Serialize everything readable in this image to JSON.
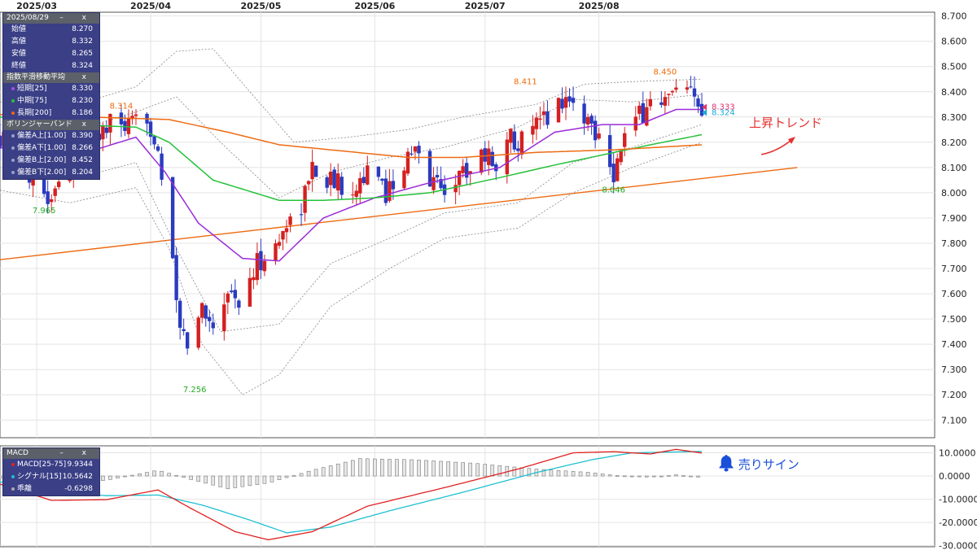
{
  "chart_data": [
    {
      "type": "candlestick",
      "x_ticks": [
        "2025/03",
        "2025/04",
        "2025/05",
        "2025/06",
        "2025/07",
        "2025/08"
      ],
      "y_ticks": [
        "8.700",
        "8.600",
        "8.500",
        "8.400",
        "8.300",
        "8.200",
        "8.100",
        "8.000",
        "7.900",
        "7.800",
        "7.700",
        "7.600",
        "7.500",
        "7.400",
        "7.300",
        "7.200",
        "7.100"
      ],
      "ylim": [
        7.03,
        8.715
      ],
      "date_range": [
        "2025-02-19",
        "2025-08-29"
      ],
      "ohlc_anchors": [
        [
          "2025-02-19",
          8.22
        ],
        [
          "2025-02-25",
          8.12
        ],
        [
          "2025-03-01",
          8.05
        ],
        [
          "2025-03-04",
          7.98
        ],
        [
          "2025-03-08",
          8.06
        ],
        [
          "2025-03-12",
          8.12
        ],
        [
          "2025-03-17",
          8.22
        ],
        [
          "2025-03-22",
          8.28
        ],
        [
          "2025-03-26",
          8.25
        ],
        [
          "2025-03-31",
          8.3
        ],
        [
          "2025-04-03",
          8.18
        ],
        [
          "2025-04-05",
          7.95
        ],
        [
          "2025-04-07",
          7.7
        ],
        [
          "2025-04-09",
          7.45
        ],
        [
          "2025-04-12",
          7.38
        ],
        [
          "2025-04-15",
          7.55
        ],
        [
          "2025-04-18",
          7.48
        ],
        [
          "2025-04-22",
          7.62
        ],
        [
          "2025-04-26",
          7.55
        ],
        [
          "2025-04-30",
          7.72
        ],
        [
          "2025-05-05",
          7.78
        ],
        [
          "2025-05-08",
          7.88
        ],
        [
          "2025-05-12",
          7.95
        ],
        [
          "2025-05-15",
          8.1
        ],
        [
          "2025-05-20",
          8.05
        ],
        [
          "2025-05-25",
          8.02
        ],
        [
          "2025-05-30",
          8.08
        ],
        [
          "2025-06-04",
          8.0
        ],
        [
          "2025-06-08",
          8.1
        ],
        [
          "2025-06-12",
          8.16
        ],
        [
          "2025-06-16",
          8.06
        ],
        [
          "2025-06-20",
          8.02
        ],
        [
          "2025-06-25",
          8.08
        ],
        [
          "2025-06-30",
          8.16
        ],
        [
          "2025-07-04",
          8.12
        ],
        [
          "2025-07-08",
          8.22
        ],
        [
          "2025-07-12",
          8.2
        ],
        [
          "2025-07-16",
          8.28
        ],
        [
          "2025-07-20",
          8.34
        ],
        [
          "2025-07-23",
          8.38
        ],
        [
          "2025-07-27",
          8.32
        ],
        [
          "2025-07-31",
          8.25
        ],
        [
          "2025-08-03",
          8.2
        ],
        [
          "2025-08-05",
          8.08
        ],
        [
          "2025-08-08",
          8.22
        ],
        [
          "2025-08-12",
          8.3
        ],
        [
          "2025-08-16",
          8.38
        ],
        [
          "2025-08-19",
          8.36
        ],
        [
          "2025-08-23",
          8.4
        ],
        [
          "2025-08-26",
          8.38
        ],
        [
          "2025-08-29",
          8.32
        ]
      ],
      "last_candle": {
        "date": "2025/08/29",
        "open": "8.270",
        "high": "8.332",
        "low": "8.265",
        "close": "8.324"
      },
      "price_labels": [
        {
          "text": "8.314",
          "date": "2025-03-24",
          "value": 8.314,
          "color": "#ee6a0a"
        },
        {
          "text": "7.965",
          "date": "2025-03-03",
          "value": 7.965,
          "color": "#22aa22"
        },
        {
          "text": "7.256",
          "date": "2025-04-13",
          "value": 7.256,
          "color": "#22aa22"
        },
        {
          "text": "8.411",
          "date": "2025-07-12",
          "value": 8.411,
          "color": "#ee6a0a"
        },
        {
          "text": "8.450",
          "date": "2025-08-19",
          "value": 8.45,
          "color": "#ee6a0a"
        },
        {
          "text": "8.046",
          "date": "2025-08-05",
          "value": 8.046,
          "color": "#22aa22"
        }
      ],
      "last_price_marks": [
        {
          "text": "8.333",
          "value": 8.333,
          "color": "#e8336e"
        },
        {
          "text": "8.324",
          "value": 8.324,
          "color": "#18a9d6"
        }
      ],
      "ema": [
        {
          "name": "短期[25]",
          "value": "8.330",
          "color": "#9b2ad8",
          "anchors": [
            [
              "2025-02-19",
              8.18
            ],
            [
              "2025-03-10",
              8.14
            ],
            [
              "2025-03-28",
              8.22
            ],
            [
              "2025-04-05",
              8.08
            ],
            [
              "2025-04-14",
              7.88
            ],
            [
              "2025-04-26",
              7.74
            ],
            [
              "2025-05-06",
              7.73
            ],
            [
              "2025-05-18",
              7.9
            ],
            [
              "2025-06-01",
              7.98
            ],
            [
              "2025-06-16",
              8.04
            ],
            [
              "2025-07-05",
              8.1
            ],
            [
              "2025-07-20",
              8.24
            ],
            [
              "2025-08-02",
              8.27
            ],
            [
              "2025-08-12",
              8.27
            ],
            [
              "2025-08-22",
              8.33
            ],
            [
              "2025-08-29",
              8.33
            ]
          ]
        },
        {
          "name": "中期[75]",
          "value": "8.230",
          "color": "#25c13a",
          "anchors": [
            [
              "2025-02-19",
              8.3
            ],
            [
              "2025-03-10",
              8.27
            ],
            [
              "2025-03-28",
              8.26
            ],
            [
              "2025-04-06",
              8.2
            ],
            [
              "2025-04-18",
              8.05
            ],
            [
              "2025-05-06",
              7.97
            ],
            [
              "2025-05-18",
              7.97
            ],
            [
              "2025-06-01",
              7.98
            ],
            [
              "2025-06-16",
              8.0
            ],
            [
              "2025-07-05",
              8.06
            ],
            [
              "2025-07-20",
              8.11
            ],
            [
              "2025-08-02",
              8.15
            ],
            [
              "2025-08-15",
              8.19
            ],
            [
              "2025-08-29",
              8.23
            ]
          ]
        },
        {
          "name": "長期[200]",
          "value": "8.186",
          "color": "#ee6a10",
          "anchors": [
            [
              "2025-02-19",
              8.31
            ],
            [
              "2025-03-15",
              8.3
            ],
            [
              "2025-04-06",
              8.29
            ],
            [
              "2025-04-22",
              8.24
            ],
            [
              "2025-05-06",
              8.19
            ],
            [
              "2025-05-20",
              8.17
            ],
            [
              "2025-06-10",
              8.14
            ],
            [
              "2025-06-25",
              8.14
            ],
            [
              "2025-07-15",
              8.16
            ],
            [
              "2025-08-05",
              8.17
            ],
            [
              "2025-08-29",
              8.19
            ]
          ]
        }
      ],
      "bollinger": [
        {
          "name": "偏差A上[1.00]",
          "value": "8.390"
        },
        {
          "name": "偏差A下[1.00]",
          "value": "8.266"
        },
        {
          "name": "偏差B上[2.00]",
          "value": "8.452"
        },
        {
          "name": "偏差B下[2.00]",
          "value": "8.204"
        }
      ],
      "bollinger_bands": [
        {
          "anchors": [
            [
              "2025-02-19",
              8.27
            ],
            [
              "2025-03-10",
              8.24
            ],
            [
              "2025-03-28",
              8.32
            ],
            [
              "2025-04-08",
              8.38
            ],
            [
              "2025-04-20",
              8.2
            ],
            [
              "2025-05-06",
              7.98
            ],
            [
              "2025-05-20",
              8.08
            ],
            [
              "2025-06-05",
              8.14
            ],
            [
              "2025-06-20",
              8.18
            ],
            [
              "2025-07-10",
              8.26
            ],
            [
              "2025-07-25",
              8.37
            ],
            [
              "2025-08-10",
              8.36
            ],
            [
              "2025-08-29",
              8.39
            ]
          ]
        },
        {
          "anchors": [
            [
              "2025-02-19",
              8.1
            ],
            [
              "2025-03-10",
              8.05
            ],
            [
              "2025-03-28",
              8.12
            ],
            [
              "2025-04-08",
              7.78
            ],
            [
              "2025-04-20",
              7.45
            ],
            [
              "2025-05-06",
              7.48
            ],
            [
              "2025-05-20",
              7.72
            ],
            [
              "2025-06-05",
              7.82
            ],
            [
              "2025-06-20",
              7.92
            ],
            [
              "2025-07-10",
              7.96
            ],
            [
              "2025-07-25",
              8.12
            ],
            [
              "2025-08-10",
              8.18
            ],
            [
              "2025-08-29",
              8.27
            ]
          ]
        },
        {
          "anchors": [
            [
              "2025-02-19",
              8.36
            ],
            [
              "2025-03-10",
              8.34
            ],
            [
              "2025-03-28",
              8.42
            ],
            [
              "2025-04-08",
              8.56
            ],
            [
              "2025-04-18",
              8.57
            ],
            [
              "2025-04-28",
              8.4
            ],
            [
              "2025-05-10",
              8.2
            ],
            [
              "2025-05-25",
              8.22
            ],
            [
              "2025-06-10",
              8.25
            ],
            [
              "2025-06-25",
              8.3
            ],
            [
              "2025-07-15",
              8.35
            ],
            [
              "2025-07-28",
              8.43
            ],
            [
              "2025-08-10",
              8.44
            ],
            [
              "2025-08-29",
              8.45
            ]
          ]
        },
        {
          "anchors": [
            [
              "2025-02-19",
              8.01
            ],
            [
              "2025-03-10",
              7.96
            ],
            [
              "2025-03-28",
              8.02
            ],
            [
              "2025-04-06",
              7.78
            ],
            [
              "2025-04-15",
              7.4
            ],
            [
              "2025-04-26",
              7.2
            ],
            [
              "2025-05-06",
              7.28
            ],
            [
              "2025-05-20",
              7.55
            ],
            [
              "2025-06-05",
              7.7
            ],
            [
              "2025-06-20",
              7.82
            ],
            [
              "2025-07-10",
              7.86
            ],
            [
              "2025-07-25",
              8.0
            ],
            [
              "2025-08-10",
              8.1
            ],
            [
              "2025-08-29",
              8.2
            ]
          ]
        }
      ],
      "trendline": {
        "color": "#ee6a10",
        "from": [
          "2025-02-19",
          7.735
        ],
        "to": [
          "2025-09-24",
          8.1
        ]
      },
      "annotation": {
        "text": "上昇トレンド",
        "color": "#e53030"
      }
    },
    {
      "type": "macd",
      "y_ticks": [
        "10.0000",
        "0.0000",
        "-10.0000",
        "-20.0000",
        "-30.0000"
      ],
      "ylim": [
        -30.5,
        13.0
      ],
      "macd": {
        "name": "MACD[25-75]",
        "value": "9.9344",
        "color": "#e02020",
        "anchors": [
          [
            "2025-02-19",
            -3.5
          ],
          [
            "2025-03-05",
            -10.5
          ],
          [
            "2025-03-20",
            -10.2
          ],
          [
            "2025-04-03",
            -6.0
          ],
          [
            "2025-04-12",
            -14.0
          ],
          [
            "2025-04-24",
            -24.0
          ],
          [
            "2025-05-03",
            -27.5
          ],
          [
            "2025-05-15",
            -24.0
          ],
          [
            "2025-05-30",
            -13.0
          ],
          [
            "2025-06-20",
            -5.0
          ],
          [
            "2025-07-10",
            3.0
          ],
          [
            "2025-07-25",
            10.0
          ],
          [
            "2025-08-05",
            10.5
          ],
          [
            "2025-08-15",
            9.5
          ],
          [
            "2025-08-22",
            11.5
          ],
          [
            "2025-08-29",
            9.9
          ]
        ]
      },
      "signal": {
        "name": "シグナル[15]",
        "value": "10.5642",
        "color": "#1ec0d0",
        "anchors": [
          [
            "2025-02-19",
            -2.5
          ],
          [
            "2025-03-05",
            -6.5
          ],
          [
            "2025-03-20",
            -8.5
          ],
          [
            "2025-04-03",
            -8.2
          ],
          [
            "2025-04-15",
            -12.5
          ],
          [
            "2025-04-28",
            -19.0
          ],
          [
            "2025-05-08",
            -24.5
          ],
          [
            "2025-05-20",
            -22.0
          ],
          [
            "2025-06-05",
            -15.0
          ],
          [
            "2025-06-25",
            -7.0
          ],
          [
            "2025-07-15",
            1.5
          ],
          [
            "2025-07-30",
            7.0
          ],
          [
            "2025-08-10",
            10.0
          ],
          [
            "2025-08-29",
            10.6
          ]
        ]
      },
      "histogram": {
        "name": "乖離",
        "value": "-0.6298",
        "anchors": [
          [
            "2025-02-19",
            -1.0
          ],
          [
            "2025-03-05",
            -4.0
          ],
          [
            "2025-03-20",
            -1.8
          ],
          [
            "2025-04-03",
            2.5
          ],
          [
            "2025-04-12",
            -1.5
          ],
          [
            "2025-04-22",
            -5.5
          ],
          [
            "2025-05-03",
            -3.0
          ],
          [
            "2025-05-15",
            2.5
          ],
          [
            "2025-05-28",
            7.5
          ],
          [
            "2025-06-12",
            7.0
          ],
          [
            "2025-06-28",
            5.5
          ],
          [
            "2025-07-15",
            3.0
          ],
          [
            "2025-07-30",
            1.5
          ],
          [
            "2025-08-05",
            0.3
          ],
          [
            "2025-08-15",
            -0.5
          ],
          [
            "2025-08-22",
            0.5
          ],
          [
            "2025-08-29",
            -0.6
          ]
        ]
      },
      "annotation": {
        "text": "売りサイン",
        "color": "#1a4fd8"
      }
    }
  ],
  "legend_panels": {
    "ohlc": {
      "title": "2025/08/29",
      "rows": [
        {
          "label": "始値",
          "value": "8.270"
        },
        {
          "label": "高値",
          "value": "8.332"
        },
        {
          "label": "安値",
          "value": "8.265"
        },
        {
          "label": "終値",
          "value": "8.324"
        }
      ]
    },
    "ema": {
      "title": "指数平滑移動平均",
      "rows": [
        {
          "label": "短期[25]",
          "value": "8.330"
        },
        {
          "label": "中期[75]",
          "value": "8.230"
        },
        {
          "label": "長期[200]",
          "value": "8.186"
        }
      ]
    },
    "bb": {
      "title": "ボリンジャーバンド",
      "rows": [
        {
          "label": "偏差A上[1.00]",
          "value": "8.390"
        },
        {
          "label": "偏差A下[1.00]",
          "value": "8.266"
        },
        {
          "label": "偏差B上[2.00]",
          "value": "8.452"
        },
        {
          "label": "偏差B下[2.00]",
          "value": "8.204"
        }
      ]
    },
    "macd": {
      "title": "MACD",
      "rows": [
        {
          "label": "MACD[25-75]",
          "value": "9.9344"
        },
        {
          "label": "シグナル[15]",
          "value": "10.5642"
        },
        {
          "label": "乖離",
          "value": "-0.6298"
        }
      ]
    },
    "controls": "– x"
  },
  "colors": {
    "up": "#d42020",
    "down": "#2a3bbf",
    "grid": "#e4e4e4",
    "panel_bg": "#3a3f86",
    "panel_head": "#5b6069",
    "bell": "#1a4fd8"
  }
}
